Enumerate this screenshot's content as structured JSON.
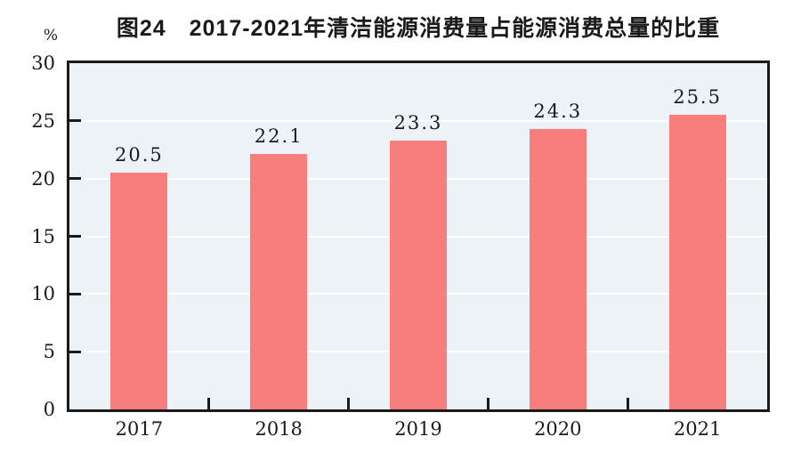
{
  "figure": {
    "title": "图24　2017-2021年清洁能源消费量占能源消费总量的比重",
    "unit_label": "%"
  },
  "chart_data": {
    "type": "bar",
    "title": "图24　2017-2021年清洁能源消费量占能源消费总量的比重",
    "categories": [
      "2017",
      "2018",
      "2019",
      "2020",
      "2021"
    ],
    "values": [
      20.5,
      22.1,
      23.3,
      24.3,
      25.5
    ],
    "data_labels": [
      "20.5",
      "22.1",
      "23.3",
      "24.3",
      "25.5"
    ],
    "xlabel": "",
    "ylabel": "%",
    "ylim": [
      0,
      30
    ],
    "yticks": [
      0,
      5,
      10,
      15,
      20,
      25,
      30
    ],
    "grid": true,
    "legend": "none",
    "colors": {
      "bar": "#F87E7E",
      "plot_background": "#EDF2F6",
      "gridline": "#FFFFFF",
      "axis": "#1A1A1A",
      "text": "#1A1A1A"
    }
  }
}
